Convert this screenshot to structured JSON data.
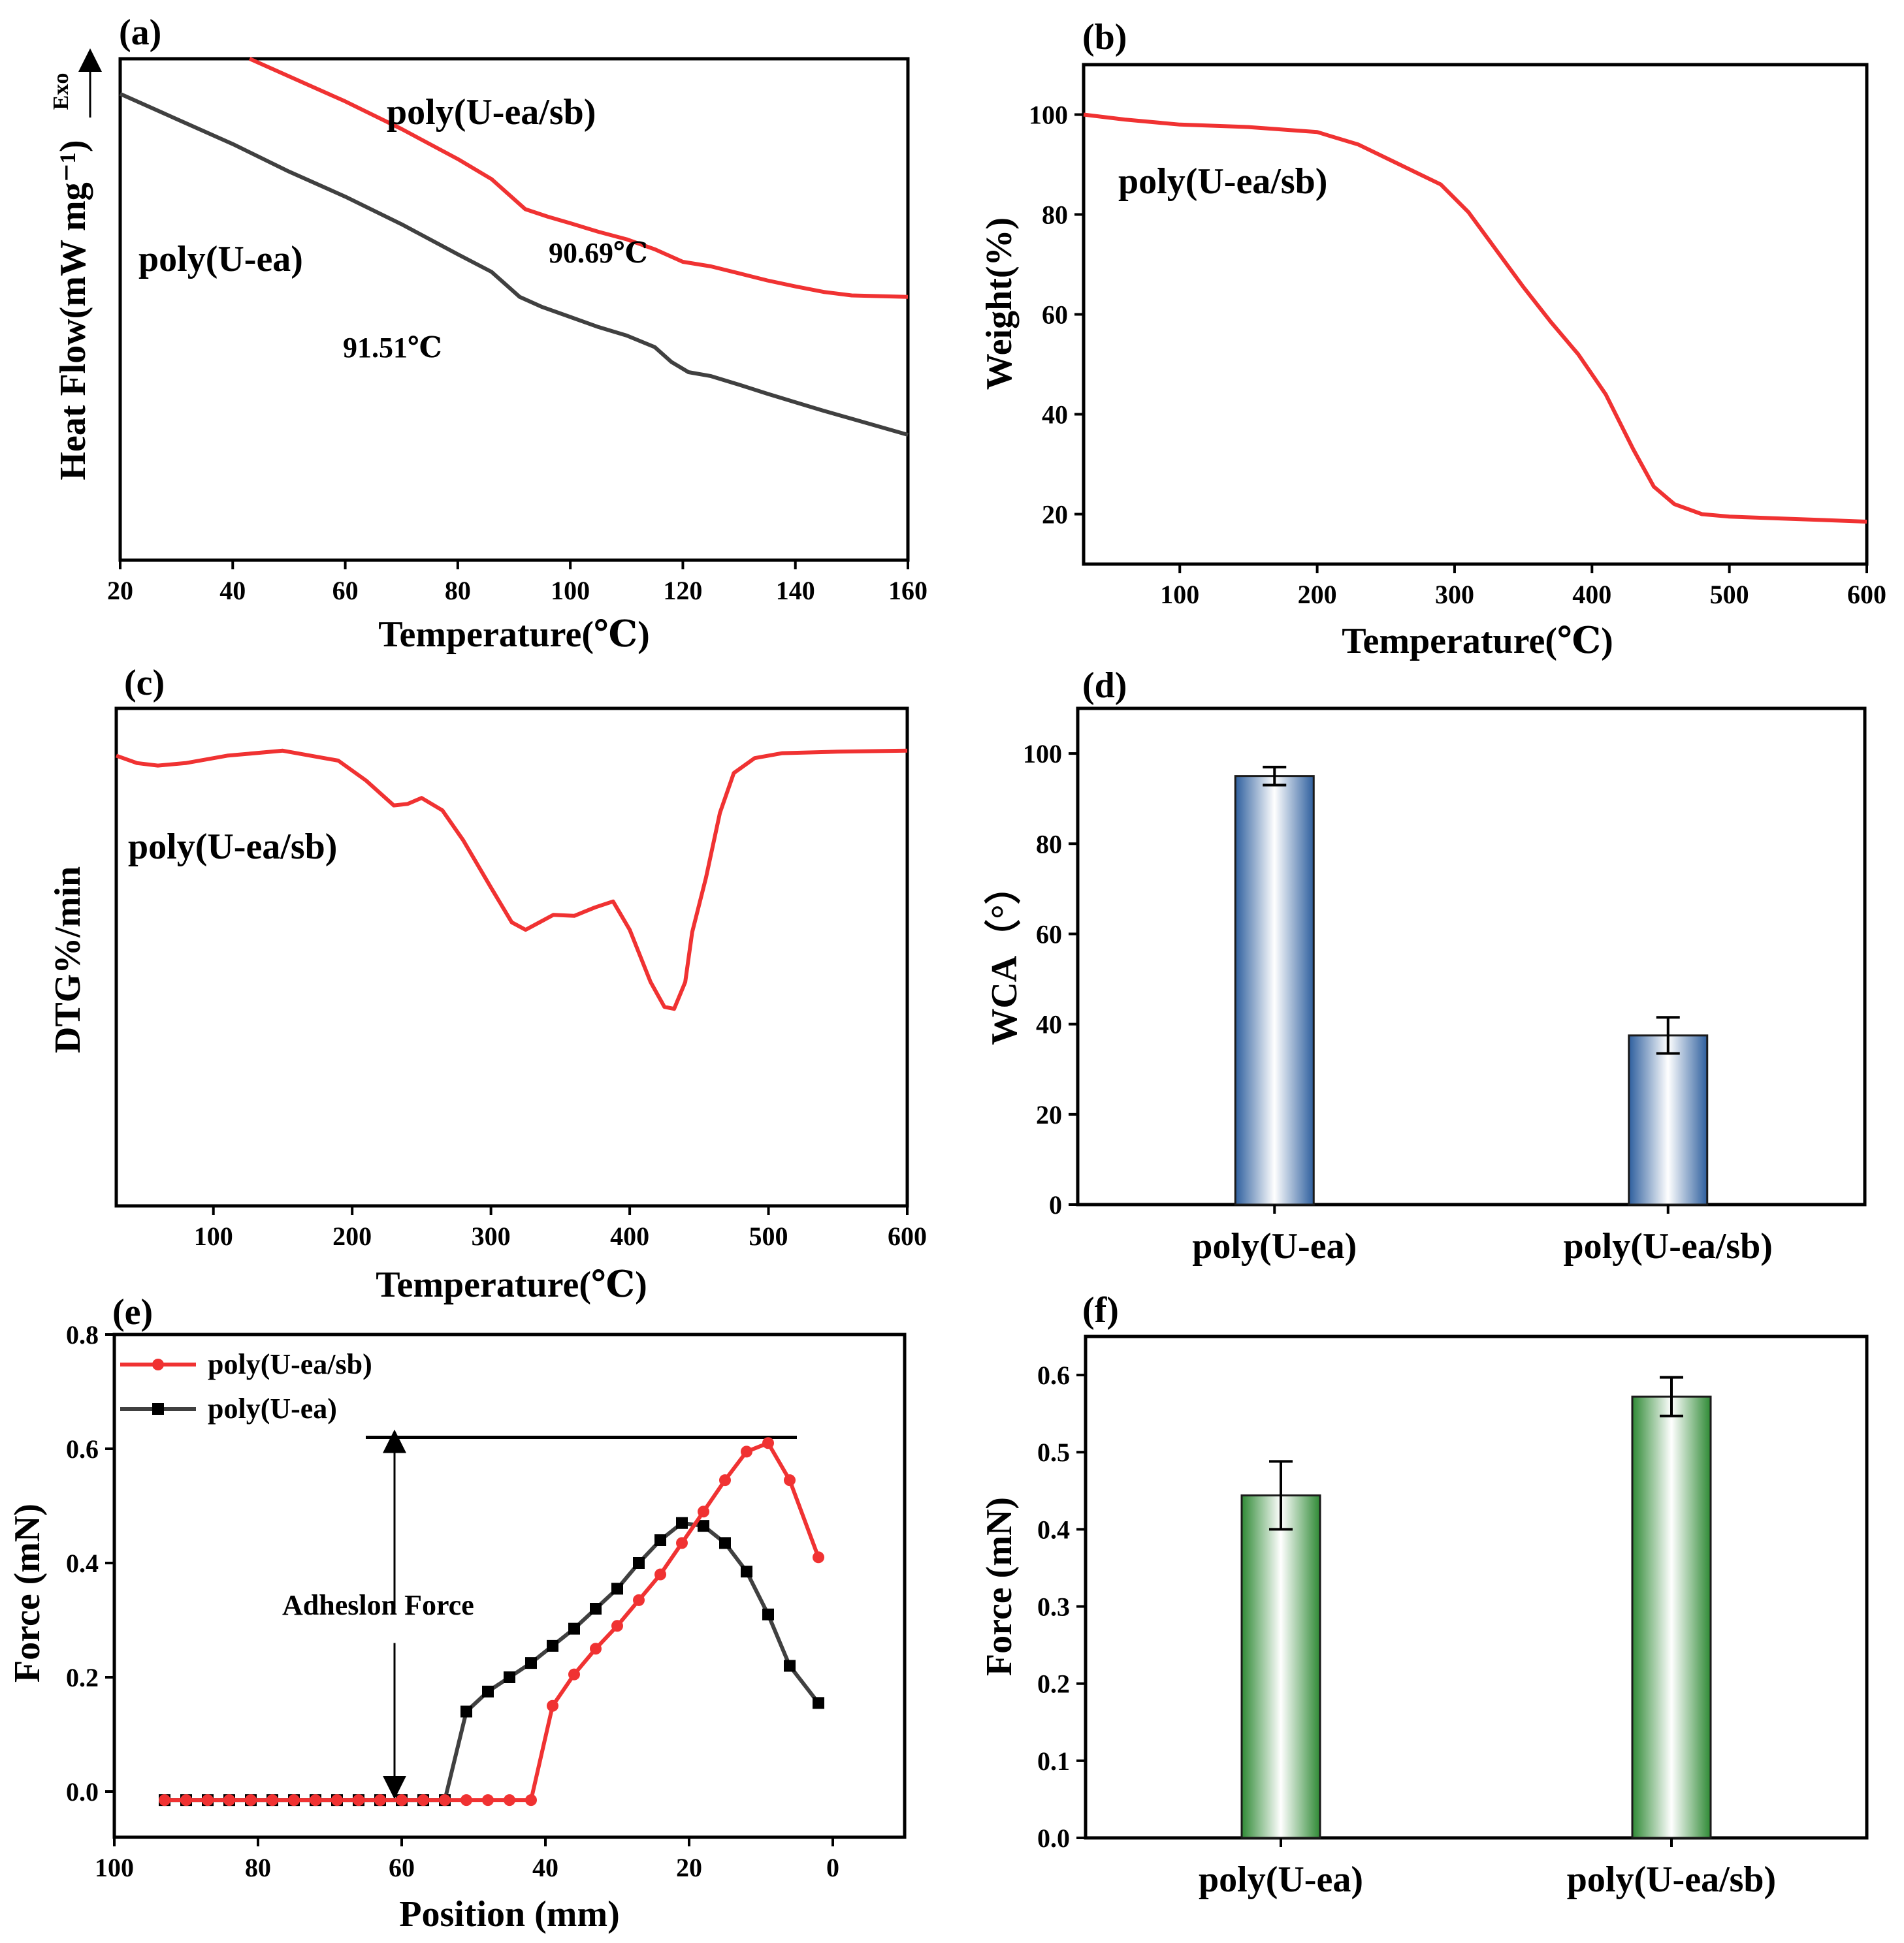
{
  "colors": {
    "red": "#f03232",
    "gray": "#404040",
    "blue": "#2e5f9e",
    "green": "#2f8a35"
  },
  "chart_data": [
    {
      "panel": "(a)",
      "type": "line",
      "xlabel": "Temperature(℃)",
      "ylabel": "Heat Flow(mW mg⁻¹)",
      "ylabel_arrow": "Exo",
      "xlim": [
        20,
        160
      ],
      "ylim": [
        0,
        100
      ],
      "xticks": [
        "20",
        "40",
        "60",
        "80",
        "100",
        "120",
        "140",
        "160"
      ],
      "series": [
        {
          "name": "poly(U-ea/sb)",
          "color": "#f03232",
          "x": [
            43,
            50,
            60,
            70,
            80,
            86,
            89,
            92,
            96,
            100,
            105,
            110,
            115,
            120,
            125,
            130,
            135,
            140,
            145,
            150,
            160
          ],
          "y": [
            100,
            96.5,
            91.5,
            86,
            80,
            76,
            73,
            70,
            68.5,
            67.2,
            65.5,
            64,
            62,
            59.5,
            58.6,
            57.2,
            55.8,
            54.6,
            53.5,
            52.8,
            52.5
          ]
        },
        {
          "name": "poly(U-ea)",
          "color": "#404040",
          "x": [
            20,
            30,
            40,
            50,
            60,
            70,
            80,
            86,
            88,
            91,
            95,
            100,
            105,
            110,
            115,
            118,
            121,
            125,
            130,
            135,
            140,
            145,
            150,
            160
          ],
          "y": [
            93,
            88,
            83,
            77.5,
            72.5,
            67,
            61,
            57.5,
            55.5,
            52.5,
            50.5,
            48.5,
            46.5,
            44.8,
            42.5,
            39.5,
            37.5,
            36.7,
            35,
            33.2,
            31.5,
            29.8,
            28.2,
            25
          ]
        }
      ],
      "annotations": [
        "poly(U-ea/sb)",
        "90.69℃",
        "poly(U-ea)",
        "91.51℃"
      ]
    },
    {
      "panel": "(b)",
      "type": "line",
      "xlabel": "Temperature(℃)",
      "ylabel": "Weight(%)",
      "xlim": [
        30,
        600
      ],
      "ylim": [
        10,
        110
      ],
      "xticks": [
        100,
        200,
        300,
        400,
        500,
        600
      ],
      "yticks": [
        20,
        40,
        60,
        80,
        100
      ],
      "series": [
        {
          "name": "poly(U-ea/sb)",
          "color": "#f03232",
          "x": [
            30,
            60,
            100,
            150,
            200,
            230,
            260,
            290,
            310,
            330,
            350,
            370,
            390,
            410,
            430,
            445,
            460,
            480,
            500,
            550,
            600
          ],
          "y": [
            100,
            99,
            98,
            97.5,
            96.5,
            94,
            90,
            86,
            80.5,
            73,
            65.5,
            58.5,
            52,
            44,
            33,
            25.5,
            22,
            20,
            19.5,
            19,
            18.5
          ]
        }
      ],
      "annotations": [
        "poly(U-ea/sb)"
      ]
    },
    {
      "panel": "(c)",
      "type": "line",
      "xlabel": "Temperature(℃)",
      "ylabel": "DTG%/min",
      "xlim": [
        30,
        600
      ],
      "ylim": [
        0,
        100
      ],
      "xticks": [
        100,
        200,
        300,
        400,
        500,
        600
      ],
      "series": [
        {
          "name": "poly(U-ea/sb)",
          "color": "#f03232",
          "x": [
            30,
            45,
            60,
            80,
            110,
            150,
            190,
            210,
            230,
            240,
            250,
            265,
            280,
            300,
            315,
            325,
            335,
            345,
            360,
            375,
            388,
            400,
            415,
            425,
            432,
            440,
            445,
            455,
            465,
            475,
            490,
            510,
            550,
            600
          ],
          "y": [
            90.5,
            89,
            88.5,
            89,
            90.5,
            91.5,
            89.5,
            85.5,
            80.5,
            80.8,
            82,
            79.5,
            73.5,
            64,
            57,
            55.5,
            57,
            58.5,
            58.3,
            60,
            61.2,
            55.5,
            45,
            40,
            39.6,
            45,
            55,
            66,
            79,
            87,
            90,
            91,
            91.3,
            91.5
          ]
        }
      ],
      "annotations": [
        "poly(U-ea/sb)"
      ]
    },
    {
      "panel": "(d)",
      "type": "bar",
      "ylabel": "WCA（°）",
      "categories": [
        "poly(U-ea)",
        "poly(U-ea/sb)"
      ],
      "values": [
        95,
        37.5
      ],
      "errors": [
        2,
        4
      ],
      "ylim": [
        0,
        110
      ],
      "yticks": [
        0,
        20,
        40,
        60,
        80,
        100
      ],
      "color": "#2e5f9e"
    },
    {
      "panel": "(e)",
      "type": "line",
      "xlabel": "Position (mm)",
      "ylabel": "Force (mN)",
      "xlim": [
        100,
        -10
      ],
      "ylim": [
        -0.08,
        0.8
      ],
      "xticks": [
        100,
        80,
        60,
        40,
        20,
        0
      ],
      "yticks": [
        "0.0",
        "0.2",
        "0.4",
        "0.6",
        "0.8"
      ],
      "legend": "top-left",
      "series": [
        {
          "name": "poly(U-ea/sb)",
          "color": "#f03232",
          "marker": "circle",
          "x": [
            93,
            90,
            87,
            84,
            81,
            78,
            75,
            72,
            69,
            66,
            63,
            60,
            57,
            54,
            51,
            48,
            45,
            42,
            39,
            36,
            33,
            30,
            27,
            24,
            21,
            18,
            15,
            12,
            9,
            6,
            2
          ],
          "y": [
            -0.015,
            -0.015,
            -0.015,
            -0.015,
            -0.015,
            -0.015,
            -0.015,
            -0.015,
            -0.015,
            -0.015,
            -0.015,
            -0.015,
            -0.015,
            -0.015,
            -0.015,
            -0.015,
            -0.015,
            -0.015,
            0.15,
            0.205,
            0.25,
            0.29,
            0.335,
            0.38,
            0.435,
            0.49,
            0.545,
            0.595,
            0.61,
            0.545,
            0.41
          ]
        },
        {
          "name": "poly(U-ea)",
          "color": "#404040",
          "marker": "square",
          "x": [
            93,
            90,
            87,
            84,
            81,
            78,
            75,
            72,
            69,
            66,
            63,
            60,
            57,
            54,
            51,
            48,
            45,
            42,
            39,
            36,
            33,
            30,
            27,
            24,
            21,
            18,
            15,
            12,
            9,
            6,
            2
          ],
          "y": [
            -0.015,
            -0.015,
            -0.015,
            -0.015,
            -0.015,
            -0.015,
            -0.015,
            -0.015,
            -0.015,
            -0.015,
            -0.015,
            -0.015,
            -0.015,
            -0.015,
            0.14,
            0.175,
            0.2,
            0.225,
            0.255,
            0.285,
            0.32,
            0.355,
            0.4,
            0.44,
            0.47,
            0.465,
            0.435,
            0.385,
            0.31,
            0.22,
            0.155
          ]
        }
      ],
      "annotation": {
        "text": "Adheslon Force",
        "hline_y": 0.62,
        "hline_x": [
          65,
          5
        ],
        "arrow_x": 61,
        "arrow_y": [
          0.0,
          0.62
        ]
      }
    },
    {
      "panel": "(f)",
      "type": "bar",
      "ylabel": "Force (mN)",
      "categories": [
        "poly(U-ea)",
        "poly(U-ea/sb)"
      ],
      "values": [
        0.444,
        0.572
      ],
      "errors": [
        0.044,
        0.025
      ],
      "ylim": [
        0,
        0.65
      ],
      "yticks": [
        "0.0",
        "0.1",
        "0.2",
        "0.3",
        "0.4",
        "0.5",
        "0.6"
      ],
      "color": "#2f8a35"
    }
  ]
}
